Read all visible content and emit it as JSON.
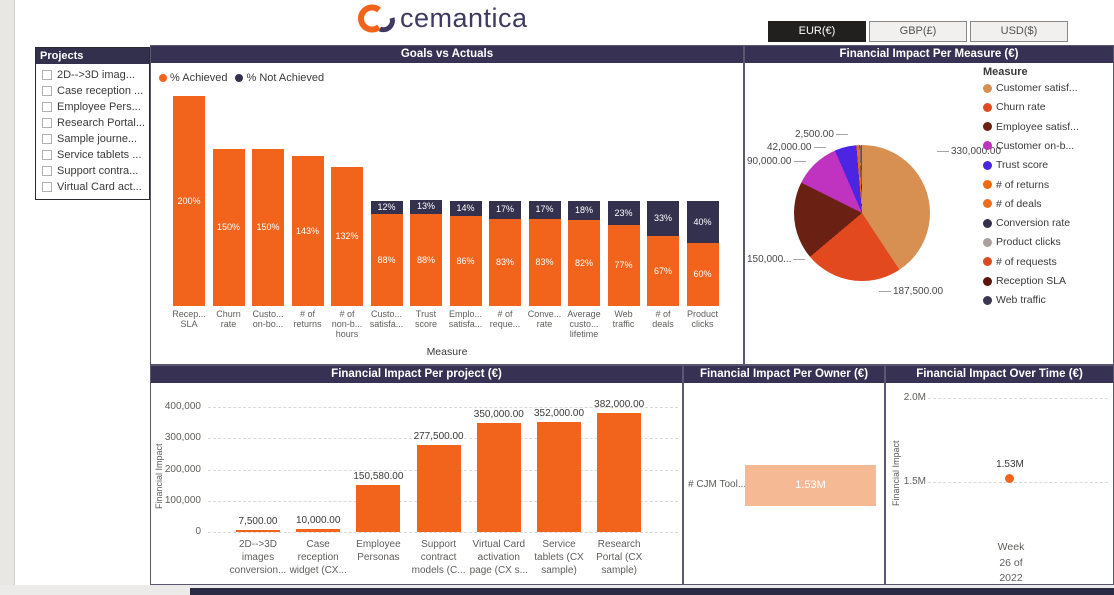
{
  "header": {
    "logo_text": "cemantica",
    "currencies": [
      {
        "label": "EUR(€)",
        "selected": true
      },
      {
        "label": "GBP(£)",
        "selected": false
      },
      {
        "label": "USD($)",
        "selected": false
      }
    ]
  },
  "slicer": {
    "title": "Projects",
    "items": [
      "2D-->3D imag...",
      "Case reception ...",
      "Employee Pers...",
      "Research Portal...",
      "Sample journe...",
      "Service tablets ...",
      "Support contra...",
      "Virtual Card act..."
    ]
  },
  "chart_data": [
    {
      "type": "bar",
      "stacked": true,
      "title": "Goals vs Actuals",
      "xlabel": "Measure",
      "categories": [
        "Recep... SLA",
        "Churn rate",
        "Custo... on-bo...",
        "# of returns",
        "# of non-b... hours",
        "Custo... satisfa...",
        "Trust score",
        "Emplo... satisfa...",
        "# of reque...",
        "Conve... rate",
        "Average custo... lifetime",
        "Web traffic",
        "# of deals",
        "Product clicks"
      ],
      "categories_lines": [
        [
          "Recep...",
          "SLA"
        ],
        [
          "Churn",
          "rate"
        ],
        [
          "Custo...",
          "on-bo..."
        ],
        [
          "# of",
          "returns"
        ],
        [
          "# of",
          "non-b...",
          "hours"
        ],
        [
          "Custo...",
          "satisfa..."
        ],
        [
          "Trust",
          "score"
        ],
        [
          "Emplo...",
          "satisfa..."
        ],
        [
          "# of",
          "reque..."
        ],
        [
          "Conve...",
          "rate"
        ],
        [
          "Average",
          "custo...",
          "lifetime"
        ],
        [
          "Web",
          "traffic"
        ],
        [
          "# of",
          "deals"
        ],
        [
          "Product",
          "clicks"
        ]
      ],
      "series": [
        {
          "name": "% Achieved",
          "color": "#F2641C",
          "values": [
            200,
            150,
            150,
            143,
            132,
            88,
            88,
            86,
            83,
            83,
            82,
            77,
            67,
            60
          ]
        },
        {
          "name": "% Not Achieved",
          "color": "#33314E",
          "values": [
            null,
            null,
            null,
            null,
            null,
            12,
            13,
            14,
            17,
            17,
            18,
            23,
            33,
            40
          ]
        }
      ]
    },
    {
      "type": "pie",
      "title": "Financial Impact Per Measure (€)",
      "legend_title": "Measure",
      "legend_position": "right",
      "slices": [
        {
          "name": "Customer satisf...",
          "color": "#D78F52",
          "value": 330000,
          "value_label": "330,000.00",
          "angle": 146.6
        },
        {
          "name": "Churn rate",
          "color": "#E2491E",
          "value": 187500,
          "value_label": "187,500.00",
          "angle": 83.3
        },
        {
          "name": "Employee satisf...",
          "color": "#6B2014",
          "value": 150000,
          "value_label": "150,000...",
          "angle": 66.6
        },
        {
          "name": "Customer on-b...",
          "color": "#C033C0",
          "value": 90000,
          "value_label": "90,000.00",
          "angle": 40
        },
        {
          "name": "Trust score",
          "color": "#4B25E1",
          "value": 42000,
          "value_label": "42,000.00",
          "angle": 18.7
        },
        {
          "name": "# of returns",
          "color": "#F1690F",
          "value": 2500,
          "value_label": "2,500.00",
          "angle": 2.2
        },
        {
          "name": "# of deals",
          "color": "#F06C1E",
          "angle": 0.6
        },
        {
          "name": "Conversion rate",
          "color": "#32304A",
          "angle": 0.5
        },
        {
          "name": "Product clicks",
          "color": "#ABA19C",
          "angle": 0.5
        },
        {
          "name": "# of requests",
          "color": "#D94A21",
          "angle": 0.4
        },
        {
          "name": "Reception SLA",
          "color": "#5C150C",
          "angle": 0.3
        },
        {
          "name": "Web traffic",
          "color": "#3A3653",
          "angle": 0.3
        }
      ]
    },
    {
      "type": "bar",
      "title": "Financial Impact Per project (€)",
      "ylabel": "Financial Impact",
      "ylim": [
        0,
        400000
      ],
      "grid": true,
      "yticks": [
        {
          "label": "400,000",
          "value": 400000
        },
        {
          "label": "300,000",
          "value": 300000
        },
        {
          "label": "200,000",
          "value": 200000
        },
        {
          "label": "100,000",
          "value": 100000
        },
        {
          "label": "0",
          "value": 0
        }
      ],
      "bar_color": "#F2641C",
      "bars": [
        {
          "lines": [
            "2D-->3D",
            "images",
            "conversion..."
          ],
          "value": 7500,
          "label": "7,500.00"
        },
        {
          "lines": [
            "Case",
            "reception",
            "widget (CX..."
          ],
          "value": 10000,
          "label": "10,000.00"
        },
        {
          "lines": [
            "Employee",
            "Personas"
          ],
          "value": 150580,
          "label": "150,580.00"
        },
        {
          "lines": [
            "Support",
            "contract",
            "models (C..."
          ],
          "value": 277500,
          "label": "277,500.00"
        },
        {
          "lines": [
            "Virtual Card",
            "activation",
            "page (CX s..."
          ],
          "value": 350000,
          "label": "350,000.00"
        },
        {
          "lines": [
            "Service",
            "tablets (CX",
            "sample)"
          ],
          "value": 352000,
          "label": "352,000.00"
        },
        {
          "lines": [
            "Research",
            "Portal (CX",
            "sample)"
          ],
          "value": 382000,
          "label": "382,000.00"
        }
      ]
    },
    {
      "type": "bar-horizontal",
      "title": "Financial Impact Per Owner (€)",
      "bar_color": "#F5BA93",
      "bars": [
        {
          "category": "# CJM Tool...",
          "value_label": "1.53M"
        }
      ]
    },
    {
      "type": "scatter",
      "title": "Financial Impact Over Time (€)",
      "ylabel": "Financial Impact",
      "grid": true,
      "yticks": [
        "2.0M",
        "1.5M"
      ],
      "point_color": "#F2641C",
      "points": [
        {
          "x_lines": [
            "Week",
            "26 of",
            "2022"
          ],
          "label": "1.53M"
        }
      ]
    }
  ]
}
